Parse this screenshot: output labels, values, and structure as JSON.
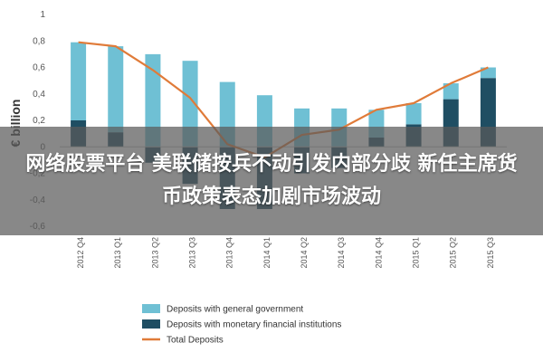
{
  "chart_data": {
    "type": "bar",
    "ylabel": "€ billion",
    "ylim": [
      -0.6,
      1.0
    ],
    "yticks": [
      "1",
      "0,8",
      "0,6",
      "0,4",
      "0,2",
      "0",
      "-0,2",
      "-0,4",
      "-0,6"
    ],
    "ytick_values": [
      1.0,
      0.8,
      0.6,
      0.4,
      0.2,
      0.0,
      -0.2,
      -0.4,
      -0.6
    ],
    "categories": [
      "2012 Q4",
      "2013 Q1",
      "2013 Q2",
      "2013 Q3",
      "2013 Q4",
      "2014 Q1",
      "2014 Q2",
      "2014 Q3",
      "2014 Q4",
      "2015 Q1",
      "2015 Q2",
      "2015 Q3"
    ],
    "series": [
      {
        "name": "Deposits with general government",
        "kind": "bar",
        "color": "#6fc0d4",
        "values": [
          0.59,
          0.65,
          0.7,
          0.65,
          0.49,
          0.39,
          0.29,
          0.29,
          0.21,
          0.16,
          0.12,
          0.08
        ]
      },
      {
        "name": "Deposits with monetary financial institutions",
        "kind": "bar",
        "color": "#1f4e63",
        "values": [
          0.2,
          0.11,
          -0.12,
          -0.28,
          -0.47,
          -0.47,
          -0.2,
          -0.16,
          0.07,
          0.17,
          0.36,
          0.52
        ]
      },
      {
        "name": "Total Deposits",
        "kind": "line",
        "color": "#e07b39",
        "values": [
          0.79,
          0.76,
          0.58,
          0.37,
          0.02,
          -0.08,
          0.09,
          0.13,
          0.28,
          0.33,
          0.48,
          0.6
        ]
      }
    ],
    "grid": false,
    "legend": "bottom-center"
  },
  "overlay": {
    "headline": "网络股票平台 美联储按兵不动引发内部分歧 新任主席货币政策表态加剧市场波动"
  }
}
